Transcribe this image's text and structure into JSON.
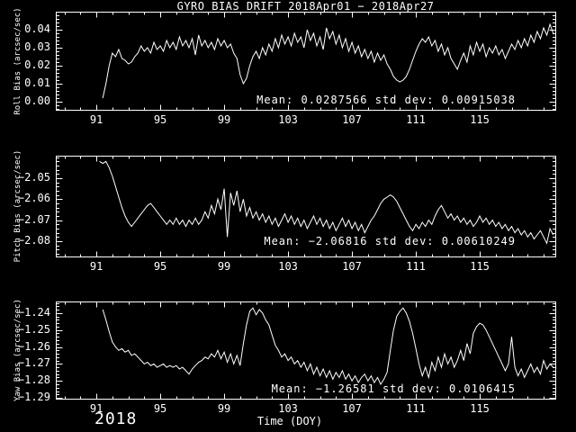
{
  "title": "GYRO BIAS DRIFT 2018Apr01 − 2018Apr27",
  "xlabel": "Time (DOY)",
  "year": "2018",
  "colors": {
    "background": "#000000",
    "foreground": "#ffffff"
  },
  "chart_data": [
    {
      "type": "line",
      "panel": "roll",
      "ylabel": "Roll Bias (arcsec/sec)",
      "mean": 0.0287566,
      "std_dev": 0.00915038,
      "stats_text": "Mean: 0.0287566 std dev: 0.00915038",
      "xlim": [
        88.46,
        119.73
      ],
      "ylim": [
        -0.0045,
        0.05
      ],
      "xticks": {
        "values": [
          91,
          95,
          99,
          103,
          107,
          111,
          115
        ],
        "labels": [
          "91",
          "95",
          "99",
          "103",
          "107",
          "111",
          "115"
        ]
      },
      "yticks": {
        "values": [
          0.0,
          0.01,
          0.02,
          0.03,
          0.04
        ],
        "labels": [
          "0.00",
          "0.01",
          "0.02",
          "0.03",
          "0.04"
        ]
      },
      "x_minor_step": 1,
      "y_minor_step": 0.002,
      "grid": false,
      "series": {
        "name": "roll-bias",
        "x_start": 91.4,
        "x_step": 0.2,
        "values": [
          0.002,
          0.01,
          0.02,
          0.027,
          0.025,
          0.029,
          0.024,
          0.023,
          0.021,
          0.022,
          0.025,
          0.027,
          0.031,
          0.028,
          0.03,
          0.027,
          0.033,
          0.029,
          0.031,
          0.028,
          0.034,
          0.03,
          0.033,
          0.029,
          0.036,
          0.031,
          0.034,
          0.03,
          0.035,
          0.026,
          0.037,
          0.031,
          0.034,
          0.03,
          0.033,
          0.029,
          0.035,
          0.031,
          0.034,
          0.03,
          0.032,
          0.027,
          0.024,
          0.015,
          0.01,
          0.013,
          0.02,
          0.025,
          0.028,
          0.024,
          0.03,
          0.026,
          0.032,
          0.028,
          0.035,
          0.03,
          0.037,
          0.032,
          0.036,
          0.031,
          0.038,
          0.033,
          0.036,
          0.03,
          0.04,
          0.034,
          0.038,
          0.031,
          0.036,
          0.029,
          0.041,
          0.035,
          0.039,
          0.032,
          0.037,
          0.03,
          0.035,
          0.028,
          0.033,
          0.027,
          0.031,
          0.025,
          0.029,
          0.024,
          0.028,
          0.022,
          0.027,
          0.023,
          0.026,
          0.021,
          0.018,
          0.014,
          0.012,
          0.011,
          0.012,
          0.014,
          0.018,
          0.023,
          0.028,
          0.032,
          0.035,
          0.033,
          0.036,
          0.031,
          0.034,
          0.028,
          0.032,
          0.026,
          0.03,
          0.024,
          0.021,
          0.018,
          0.023,
          0.027,
          0.022,
          0.031,
          0.026,
          0.033,
          0.028,
          0.032,
          0.025,
          0.03,
          0.027,
          0.031,
          0.026,
          0.029,
          0.024,
          0.028,
          0.032,
          0.029,
          0.034,
          0.03,
          0.035,
          0.031,
          0.037,
          0.033,
          0.039,
          0.035,
          0.041,
          0.037,
          0.043,
          0.038
        ]
      }
    },
    {
      "type": "line",
      "panel": "pitch",
      "ylabel": "Pitch Bias (arcsec/sec)",
      "mean": -2.06816,
      "std_dev": 0.00610249,
      "stats_text": "Mean: −2.06816 std dev: 0.00610249",
      "xlim": [
        88.46,
        119.73
      ],
      "ylim": [
        -2.0873,
        -2.0393
      ],
      "xticks": {
        "values": [
          91,
          95,
          99,
          103,
          107,
          111,
          115
        ],
        "labels": [
          "91",
          "95",
          "99",
          "103",
          "107",
          "111",
          "115"
        ]
      },
      "yticks": {
        "values": [
          -2.08,
          -2.07,
          -2.06,
          -2.05
        ],
        "labels": [
          "−2.08",
          "−2.07",
          "−2.06",
          "−2.05"
        ]
      },
      "x_minor_step": 1,
      "y_minor_step": 0.002,
      "grid": false,
      "series": {
        "name": "pitch-bias",
        "x_start": 91.2,
        "x_step": 0.2,
        "values": [
          -2.042,
          -2.043,
          -2.042,
          -2.045,
          -2.049,
          -2.054,
          -2.059,
          -2.064,
          -2.068,
          -2.071,
          -2.073,
          -2.071,
          -2.069,
          -2.067,
          -2.065,
          -2.063,
          -2.062,
          -2.064,
          -2.066,
          -2.068,
          -2.07,
          -2.072,
          -2.07,
          -2.072,
          -2.069,
          -2.072,
          -2.07,
          -2.073,
          -2.07,
          -2.072,
          -2.069,
          -2.072,
          -2.07,
          -2.066,
          -2.069,
          -2.063,
          -2.067,
          -2.06,
          -2.065,
          -2.055,
          -2.078,
          -2.057,
          -2.063,
          -2.056,
          -2.066,
          -2.06,
          -2.068,
          -2.064,
          -2.069,
          -2.066,
          -2.07,
          -2.067,
          -2.071,
          -2.068,
          -2.072,
          -2.069,
          -2.073,
          -2.07,
          -2.067,
          -2.071,
          -2.068,
          -2.072,
          -2.069,
          -2.073,
          -2.07,
          -2.074,
          -2.071,
          -2.068,
          -2.072,
          -2.069,
          -2.073,
          -2.07,
          -2.074,
          -2.071,
          -2.075,
          -2.072,
          -2.069,
          -2.073,
          -2.07,
          -2.074,
          -2.071,
          -2.075,
          -2.072,
          -2.076,
          -2.073,
          -2.07,
          -2.068,
          -2.065,
          -2.062,
          -2.06,
          -2.059,
          -2.058,
          -2.059,
          -2.061,
          -2.064,
          -2.067,
          -2.07,
          -2.073,
          -2.075,
          -2.072,
          -2.074,
          -2.071,
          -2.073,
          -2.07,
          -2.072,
          -2.068,
          -2.065,
          -2.063,
          -2.066,
          -2.069,
          -2.067,
          -2.07,
          -2.068,
          -2.071,
          -2.069,
          -2.072,
          -2.07,
          -2.073,
          -2.071,
          -2.068,
          -2.071,
          -2.069,
          -2.072,
          -2.07,
          -2.073,
          -2.071,
          -2.074,
          -2.072,
          -2.075,
          -2.073,
          -2.076,
          -2.074,
          -2.077,
          -2.075,
          -2.078,
          -2.076,
          -2.079,
          -2.077,
          -2.075,
          -2.078,
          -2.081,
          -2.074,
          -2.077
        ]
      }
    },
    {
      "type": "line",
      "panel": "yaw",
      "ylabel": "Yaw Bias (arcsec/sec)",
      "mean": -1.26581,
      "std_dev": 0.0106415,
      "stats_text": "Mean: −1.26581 std dev: 0.0106415",
      "xlim": [
        88.46,
        119.73
      ],
      "ylim": [
        -1.2905,
        -1.2332
      ],
      "xticks": {
        "values": [
          91,
          95,
          99,
          103,
          107,
          111,
          115
        ],
        "labels": [
          "91",
          "95",
          "99",
          "103",
          "107",
          "111",
          "115"
        ]
      },
      "yticks": {
        "values": [
          -1.29,
          -1.28,
          -1.27,
          -1.26,
          -1.25,
          -1.24
        ],
        "labels": [
          "−1.29",
          "−1.28",
          "−1.27",
          "−1.26",
          "−1.25",
          "−1.24"
        ]
      },
      "x_minor_step": 1,
      "y_minor_step": 0.002,
      "grid": false,
      "series": {
        "name": "yaw-bias",
        "x_start": 91.4,
        "x_step": 0.2,
        "values": [
          -1.238,
          -1.244,
          -1.251,
          -1.257,
          -1.26,
          -1.262,
          -1.261,
          -1.263,
          -1.262,
          -1.265,
          -1.264,
          -1.266,
          -1.268,
          -1.27,
          -1.269,
          -1.271,
          -1.27,
          -1.272,
          -1.271,
          -1.27,
          -1.272,
          -1.271,
          -1.272,
          -1.271,
          -1.273,
          -1.272,
          -1.274,
          -1.276,
          -1.273,
          -1.271,
          -1.269,
          -1.268,
          -1.266,
          -1.267,
          -1.264,
          -1.266,
          -1.262,
          -1.267,
          -1.263,
          -1.269,
          -1.264,
          -1.27,
          -1.265,
          -1.271,
          -1.258,
          -1.247,
          -1.239,
          -1.237,
          -1.241,
          -1.238,
          -1.24,
          -1.244,
          -1.247,
          -1.253,
          -1.259,
          -1.262,
          -1.266,
          -1.264,
          -1.268,
          -1.266,
          -1.27,
          -1.268,
          -1.272,
          -1.269,
          -1.274,
          -1.27,
          -1.276,
          -1.272,
          -1.277,
          -1.273,
          -1.278,
          -1.274,
          -1.279,
          -1.275,
          -1.278,
          -1.274,
          -1.279,
          -1.276,
          -1.28,
          -1.277,
          -1.281,
          -1.278,
          -1.276,
          -1.28,
          -1.277,
          -1.281,
          -1.278,
          -1.282,
          -1.279,
          -1.275,
          -1.262,
          -1.25,
          -1.242,
          -1.239,
          -1.237,
          -1.24,
          -1.245,
          -1.252,
          -1.261,
          -1.27,
          -1.277,
          -1.272,
          -1.278,
          -1.269,
          -1.274,
          -1.266,
          -1.272,
          -1.264,
          -1.27,
          -1.266,
          -1.272,
          -1.268,
          -1.262,
          -1.268,
          -1.258,
          -1.264,
          -1.252,
          -1.248,
          -1.246,
          -1.247,
          -1.25,
          -1.254,
          -1.258,
          -1.262,
          -1.266,
          -1.27,
          -1.274,
          -1.27,
          -1.254,
          -1.272,
          -1.277,
          -1.273,
          -1.278,
          -1.274,
          -1.27,
          -1.275,
          -1.272,
          -1.276,
          -1.268,
          -1.273,
          -1.27,
          -1.272
        ]
      }
    }
  ]
}
